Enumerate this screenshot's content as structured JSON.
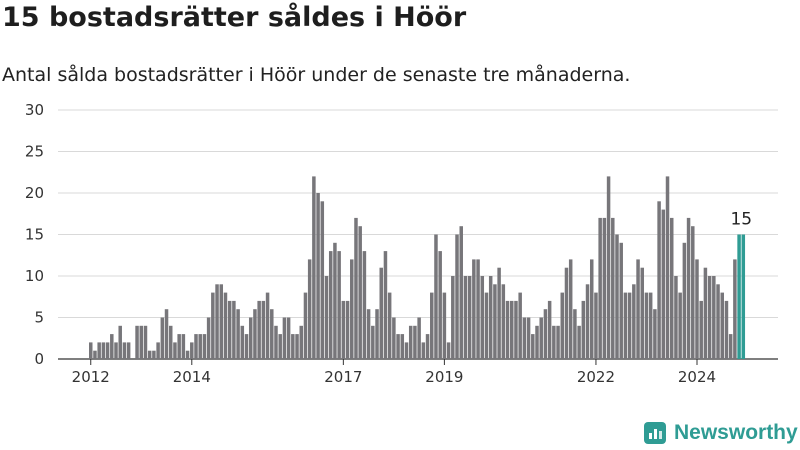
{
  "header": {
    "title": "15 bostadsrätter såldes i Höör",
    "subtitle": "Antal sålda bostadsrätter i Höör under de senaste tre månaderna."
  },
  "brand": {
    "name": "Newsworthy",
    "icon": "newsworthy-logo-icon",
    "color": "#2f9c94"
  },
  "chart_data": {
    "type": "bar",
    "title": "15 bostadsrätter såldes i Höör",
    "subtitle": "Antal sålda bostadsrätter i Höör under de senaste tre månaderna.",
    "xlabel": "",
    "ylabel": "",
    "ylim": [
      0,
      30
    ],
    "yticks": [
      0,
      5,
      10,
      15,
      20,
      25,
      30
    ],
    "grid": true,
    "legend": "none",
    "bar_color": "#77767a",
    "highlight_color": "#2f9c94",
    "x_start": "2012-01",
    "xticks": [
      {
        "label": "2012",
        "date": "2012-01"
      },
      {
        "label": "2014",
        "date": "2014-01"
      },
      {
        "label": "2017",
        "date": "2017-01"
      },
      {
        "label": "2019",
        "date": "2019-01"
      },
      {
        "label": "2022",
        "date": "2022-01"
      },
      {
        "label": "2024",
        "date": "2024-01"
      }
    ],
    "values": [
      2,
      1,
      2,
      2,
      2,
      3,
      2,
      4,
      2,
      2,
      0,
      4,
      4,
      4,
      1,
      1,
      2,
      5,
      6,
      4,
      2,
      3,
      3,
      1,
      2,
      3,
      3,
      3,
      5,
      8,
      9,
      9,
      8,
      7,
      7,
      6,
      4,
      3,
      5,
      6,
      7,
      7,
      8,
      6,
      4,
      3,
      5,
      5,
      3,
      3,
      4,
      8,
      12,
      22,
      20,
      19,
      10,
      13,
      14,
      13,
      7,
      7,
      12,
      17,
      16,
      13,
      6,
      4,
      6,
      11,
      13,
      8,
      5,
      3,
      3,
      2,
      4,
      4,
      5,
      2,
      3,
      8,
      15,
      13,
      8,
      2,
      10,
      15,
      16,
      10,
      10,
      12,
      12,
      10,
      8,
      10,
      9,
      11,
      9,
      7,
      7,
      7,
      8,
      5,
      5,
      3,
      4,
      5,
      6,
      7,
      4,
      4,
      8,
      11,
      12,
      6,
      4,
      7,
      9,
      12,
      8,
      17,
      17,
      22,
      17,
      15,
      14,
      8,
      8,
      9,
      12,
      11,
      8,
      8,
      6,
      19,
      18,
      22,
      17,
      10,
      8,
      14,
      17,
      16,
      12,
      7,
      11,
      10,
      10,
      9,
      8,
      7,
      3,
      12,
      15,
      15
    ],
    "highlight_last": 2,
    "annotations": [
      {
        "text": "15",
        "target": "last"
      }
    ]
  }
}
